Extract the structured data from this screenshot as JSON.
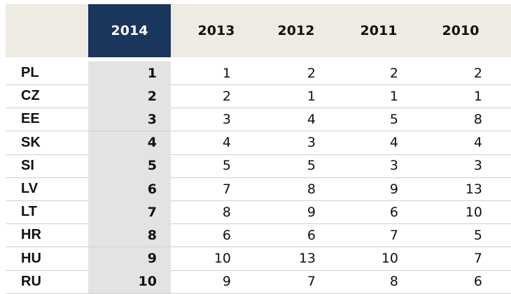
{
  "table": {
    "columns": [
      "",
      "2014",
      "2013",
      "2012",
      "2011",
      "2010"
    ],
    "highlight_column": "2014",
    "rows": [
      {
        "country": "PL",
        "values": [
          "1",
          "1",
          "2",
          "2",
          "2"
        ]
      },
      {
        "country": "CZ",
        "values": [
          "2",
          "2",
          "1",
          "1",
          "1"
        ]
      },
      {
        "country": "EE",
        "values": [
          "3",
          "3",
          "4",
          "5",
          "8"
        ]
      },
      {
        "country": "SK",
        "values": [
          "4",
          "4",
          "3",
          "4",
          "4"
        ]
      },
      {
        "country": "SI",
        "values": [
          "5",
          "5",
          "5",
          "3",
          "3"
        ]
      },
      {
        "country": "LV",
        "values": [
          "6",
          "7",
          "8",
          "9",
          "13"
        ]
      },
      {
        "country": "LT",
        "values": [
          "7",
          "8",
          "9",
          "6",
          "10"
        ]
      },
      {
        "country": "HR",
        "values": [
          "8",
          "6",
          "6",
          "7",
          "5"
        ]
      },
      {
        "country": "HU",
        "values": [
          "9",
          "10",
          "13",
          "10",
          "7"
        ]
      },
      {
        "country": "RU",
        "values": [
          "10",
          "9",
          "7",
          "8",
          "6"
        ]
      }
    ]
  },
  "colors": {
    "header_background": "#eeece2",
    "highlight_header": "#1b365d",
    "highlight_column": "#e3e3e3",
    "row_line": "#cfcfcf"
  }
}
